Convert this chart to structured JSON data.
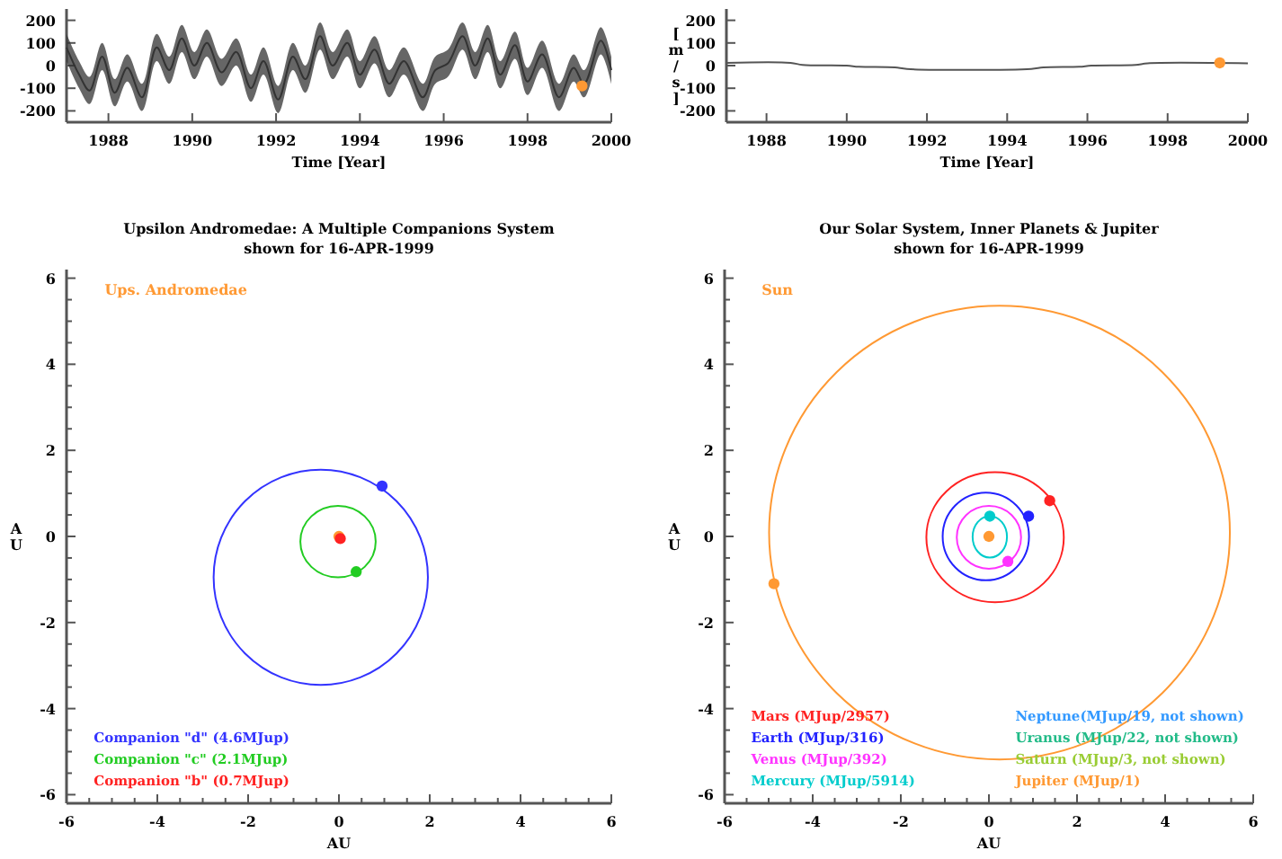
{
  "chart_data": [
    {
      "type": "line",
      "xlabel": "Time [Year]",
      "xlim": [
        1987,
        2000
      ],
      "xticks": [
        1988,
        1990,
        1992,
        1994,
        1996,
        1998,
        2000
      ],
      "ylim": [
        -250,
        250
      ],
      "yticks": [
        -200,
        -100,
        0,
        100,
        200
      ],
      "series": [
        {
          "color": "#333333",
          "x": [
            1987.0,
            1987.3,
            1987.55,
            1987.85,
            1988.15,
            1988.45,
            1988.8,
            1989.15,
            1989.45,
            1989.75,
            1990.05,
            1990.35,
            1990.7,
            1991.05,
            1991.4,
            1991.7,
            1992.05,
            1992.4,
            1992.7,
            1993.05,
            1993.35,
            1993.7,
            1994.0,
            1994.35,
            1994.7,
            1995.05,
            1995.5,
            1995.8,
            1996.1,
            1996.45,
            1996.75,
            1997.05,
            1997.35,
            1997.7,
            1998.0,
            1998.35,
            1998.75,
            1999.1,
            1999.35,
            1999.75,
            2000.0
          ],
          "values": [
            80,
            -40,
            -110,
            40,
            -120,
            -10,
            -140,
            80,
            -20,
            120,
            0,
            100,
            -30,
            60,
            -100,
            20,
            -150,
            40,
            -60,
            130,
            0,
            100,
            -40,
            70,
            -80,
            20,
            -140,
            -20,
            10,
            130,
            0,
            120,
            -40,
            90,
            -70,
            50,
            -140,
            -10,
            -80,
            110,
            -20
          ],
          "lower": [
            20,
            -100,
            -170,
            -20,
            -180,
            -70,
            -200,
            20,
            -80,
            60,
            -60,
            40,
            -90,
            0,
            -160,
            -40,
            -210,
            -20,
            -120,
            70,
            -60,
            40,
            -100,
            10,
            -140,
            -40,
            -200,
            -80,
            -50,
            70,
            -60,
            60,
            -100,
            30,
            -130,
            -10,
            -200,
            -70,
            -140,
            50,
            -80
          ],
          "upper": [
            140,
            20,
            -50,
            100,
            -60,
            50,
            -80,
            140,
            40,
            180,
            60,
            160,
            30,
            120,
            -40,
            80,
            -90,
            100,
            0,
            190,
            60,
            160,
            20,
            130,
            -20,
            80,
            -80,
            40,
            70,
            190,
            60,
            180,
            20,
            150,
            -10,
            110,
            -80,
            50,
            -20,
            170,
            40
          ]
        },
        {
          "type": "scatter",
          "marker": "circle",
          "color": "#ff9933",
          "x": [
            1999.3
          ],
          "values": [
            -90
          ]
        }
      ]
    },
    {
      "type": "line",
      "xlabel": "Time [Year]",
      "ylabel": "[m/s]",
      "xlim": [
        1987,
        2000
      ],
      "xticks": [
        1988,
        1990,
        1992,
        1994,
        1996,
        1998,
        2000
      ],
      "ylim": [
        -250,
        250
      ],
      "yticks": [
        -200,
        -100,
        0,
        100,
        200
      ],
      "series": [
        {
          "color": "#555555",
          "x": [
            1987,
            1988.6,
            1988.9,
            1990,
            1990.3,
            1991.2,
            1991.5,
            1994.6,
            1994.9,
            1995.8,
            1996.1,
            1997.2,
            1997.5,
            2000
          ],
          "values": [
            12,
            12,
            3,
            0,
            -5,
            -8,
            -15,
            -15,
            -8,
            -5,
            0,
            3,
            10,
            10
          ]
        },
        {
          "type": "scatter",
          "marker": "circle",
          "color": "#ff9933",
          "x": [
            1999.3
          ],
          "values": [
            12
          ]
        }
      ]
    },
    {
      "type": "scatter",
      "title": "Upsilon Andromedae: A Multiple Companions System",
      "subtitle": "shown for 16-APR-1999",
      "xlabel": "AU",
      "ylabel": "AU",
      "annotations": [
        "Ups. Andromedae"
      ],
      "xlim": [
        -6,
        6
      ],
      "ylim": [
        -6.2,
        6.2
      ],
      "xticks": [
        -6,
        {
          "value": -5.5,
          "label": null
        },
        {
          "value": -5,
          "label": null
        },
        {
          "value": -4.5,
          "label": null
        },
        -4,
        {
          "value": -3.5,
          "label": null
        },
        {
          "value": -3,
          "label": null
        },
        {
          "value": -2.5,
          "label": null
        },
        -2,
        {
          "value": -1.5,
          "label": null
        },
        {
          "value": -1,
          "label": null
        },
        {
          "value": -0.5,
          "label": null
        },
        0,
        {
          "value": 0.5,
          "label": null
        },
        {
          "value": 1,
          "label": null
        },
        {
          "value": 1.5,
          "label": null
        },
        2,
        {
          "value": 2.5,
          "label": null
        },
        {
          "value": 3,
          "label": null
        },
        {
          "value": 3.5,
          "label": null
        },
        4,
        {
          "value": 4.5,
          "label": null
        },
        {
          "value": 5,
          "label": null
        },
        {
          "value": 5.5,
          "label": null
        },
        6
      ],
      "yticks": [
        -6,
        {
          "value": -5.5,
          "label": null
        },
        {
          "value": -5,
          "label": null
        },
        {
          "value": -4.5,
          "label": null
        },
        -4,
        {
          "value": -3.5,
          "label": null
        },
        {
          "value": -3,
          "label": null
        },
        {
          "value": -2.5,
          "label": null
        },
        -2,
        {
          "value": -1.5,
          "label": null
        },
        {
          "value": -1,
          "label": null
        },
        {
          "value": -0.5,
          "label": null
        },
        0,
        {
          "value": 0.5,
          "label": null
        },
        {
          "value": 1,
          "label": null
        },
        {
          "value": 1.5,
          "label": null
        },
        2,
        {
          "value": 2.5,
          "label": null
        },
        {
          "value": 3,
          "label": null
        },
        {
          "value": 3.5,
          "label": null
        },
        4,
        {
          "value": 4.5,
          "label": null
        },
        {
          "value": 5,
          "label": null
        },
        {
          "value": 5.5,
          "label": null
        },
        6
      ],
      "legend": "bottom left",
      "marker": "circle",
      "series": [
        {
          "color": "#ff9933",
          "x": [
            0
          ],
          "values": [
            0
          ]
        },
        {
          "name": "Companion \"d\" (4.6MJup)",
          "color": "#3333ff",
          "x": [
            0.95
          ],
          "values": [
            1.17
          ]
        },
        {
          "name": "Companion \"c\" (2.1MJup)",
          "color": "#22cc22",
          "x": [
            0.38
          ],
          "values": [
            -0.82
          ]
        },
        {
          "name": "Companion \"b\" (0.7MJup)",
          "color": "#ff2222",
          "x": [
            0.03
          ],
          "values": [
            -0.05
          ]
        }
      ]
    },
    {
      "type": "scatter",
      "title": "Our Solar System, Inner Planets & Jupiter",
      "subtitle": "shown for 16-APR-1999",
      "xlabel": "AU",
      "ylabel": "AU",
      "annotations": [
        "Sun"
      ],
      "xlim": [
        -6,
        6
      ],
      "ylim": [
        -6.2,
        6.2
      ],
      "xticks": [
        -6,
        {
          "value": -5.5,
          "label": null
        },
        {
          "value": -5,
          "label": null
        },
        {
          "value": -4.5,
          "label": null
        },
        -4,
        {
          "value": -3.5,
          "label": null
        },
        {
          "value": -3,
          "label": null
        },
        {
          "value": -2.5,
          "label": null
        },
        -2,
        {
          "value": -1.5,
          "label": null
        },
        {
          "value": -1,
          "label": null
        },
        {
          "value": -0.5,
          "label": null
        },
        0,
        {
          "value": 0.5,
          "label": null
        },
        {
          "value": 1,
          "label": null
        },
        {
          "value": 1.5,
          "label": null
        },
        2,
        {
          "value": 2.5,
          "label": null
        },
        {
          "value": 3,
          "label": null
        },
        {
          "value": 3.5,
          "label": null
        },
        4,
        {
          "value": 4.5,
          "label": null
        },
        {
          "value": 5,
          "label": null
        },
        {
          "value": 5.5,
          "label": null
        },
        6
      ],
      "yticks": [
        -6,
        {
          "value": -5.5,
          "label": null
        },
        {
          "value": -5,
          "label": null
        },
        {
          "value": -4.5,
          "label": null
        },
        -4,
        {
          "value": -3.5,
          "label": null
        },
        {
          "value": -3,
          "label": null
        },
        {
          "value": -2.5,
          "label": null
        },
        -2,
        {
          "value": -1.5,
          "label": null
        },
        {
          "value": -1,
          "label": null
        },
        {
          "value": -0.5,
          "label": null
        },
        0,
        {
          "value": 0.5,
          "label": null
        },
        {
          "value": 1,
          "label": null
        },
        {
          "value": 1.5,
          "label": null
        },
        2,
        {
          "value": 2.5,
          "label": null
        },
        {
          "value": 3,
          "label": null
        },
        {
          "value": 3.5,
          "label": null
        },
        4,
        {
          "value": 4.5,
          "label": null
        },
        {
          "value": 5,
          "label": null
        },
        {
          "value": 5.5,
          "label": null
        },
        6
      ],
      "legend": "bottom",
      "marker": "circle",
      "series": [
        {
          "name": "Mars (MJup/2957)",
          "color": "#ff2222",
          "x": [
            1.38
          ],
          "values": [
            0.83
          ]
        },
        {
          "name": "Earth (MJup/316)",
          "color": "#2222ff",
          "x": [
            0.9
          ],
          "values": [
            0.47
          ]
        },
        {
          "name": "Venus (MJup/392)",
          "color": "#ff33ff",
          "x": [
            0.43
          ],
          "values": [
            -0.58
          ]
        },
        {
          "name": "Mercury (MJup/5914)",
          "color": "#00cccc",
          "x": [
            0.02
          ],
          "values": [
            0.47
          ]
        },
        {
          "name": "Neptune(MJup/19, not shown)",
          "color": "#3399ff"
        },
        {
          "name": "Uranus (MJup/22, not shown)",
          "color": "#22bb88"
        },
        {
          "name": "Saturn (MJup/3, not shown)",
          "color": "#99cc33"
        },
        {
          "name": "Jupiter (MJup/1)",
          "color": "#ff9933",
          "x": [
            -4.88
          ],
          "values": [
            -1.1
          ]
        },
        {
          "color": "#ff9933",
          "x": [
            0
          ],
          "values": [
            0
          ]
        }
      ]
    }
  ]
}
